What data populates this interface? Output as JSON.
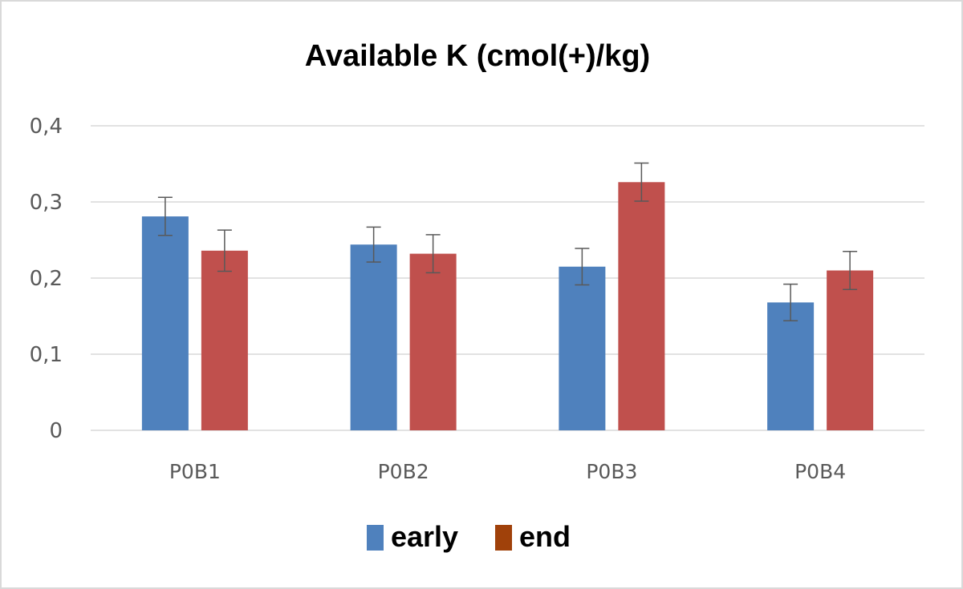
{
  "chart_data": {
    "type": "bar",
    "title": "Available K (cmol(+)/kg)",
    "xlabel": "",
    "ylabel": "",
    "categories": [
      "P0B1",
      "P0B2",
      "P0B3",
      "P0B4"
    ],
    "ylim": [
      0,
      0.4
    ],
    "yticks": [
      0,
      0.1,
      0.2,
      0.3,
      0.4
    ],
    "ytick_labels": [
      "0",
      "0,1",
      "0,2",
      "0,3",
      "0,4"
    ],
    "grid": true,
    "legend_position": "bottom",
    "series": [
      {
        "name": "early",
        "color": "#4f81bd",
        "values": [
          0.281,
          0.244,
          0.215,
          0.168
        ],
        "error": [
          0.025,
          0.023,
          0.024,
          0.024
        ]
      },
      {
        "name": "end",
        "color": "#c0504d",
        "values": [
          0.236,
          0.232,
          0.326,
          0.21
        ],
        "error": [
          0.027,
          0.025,
          0.025,
          0.025
        ]
      }
    ],
    "legend_swatch_colors": [
      "#4f81bd",
      "#a0410a"
    ]
  }
}
